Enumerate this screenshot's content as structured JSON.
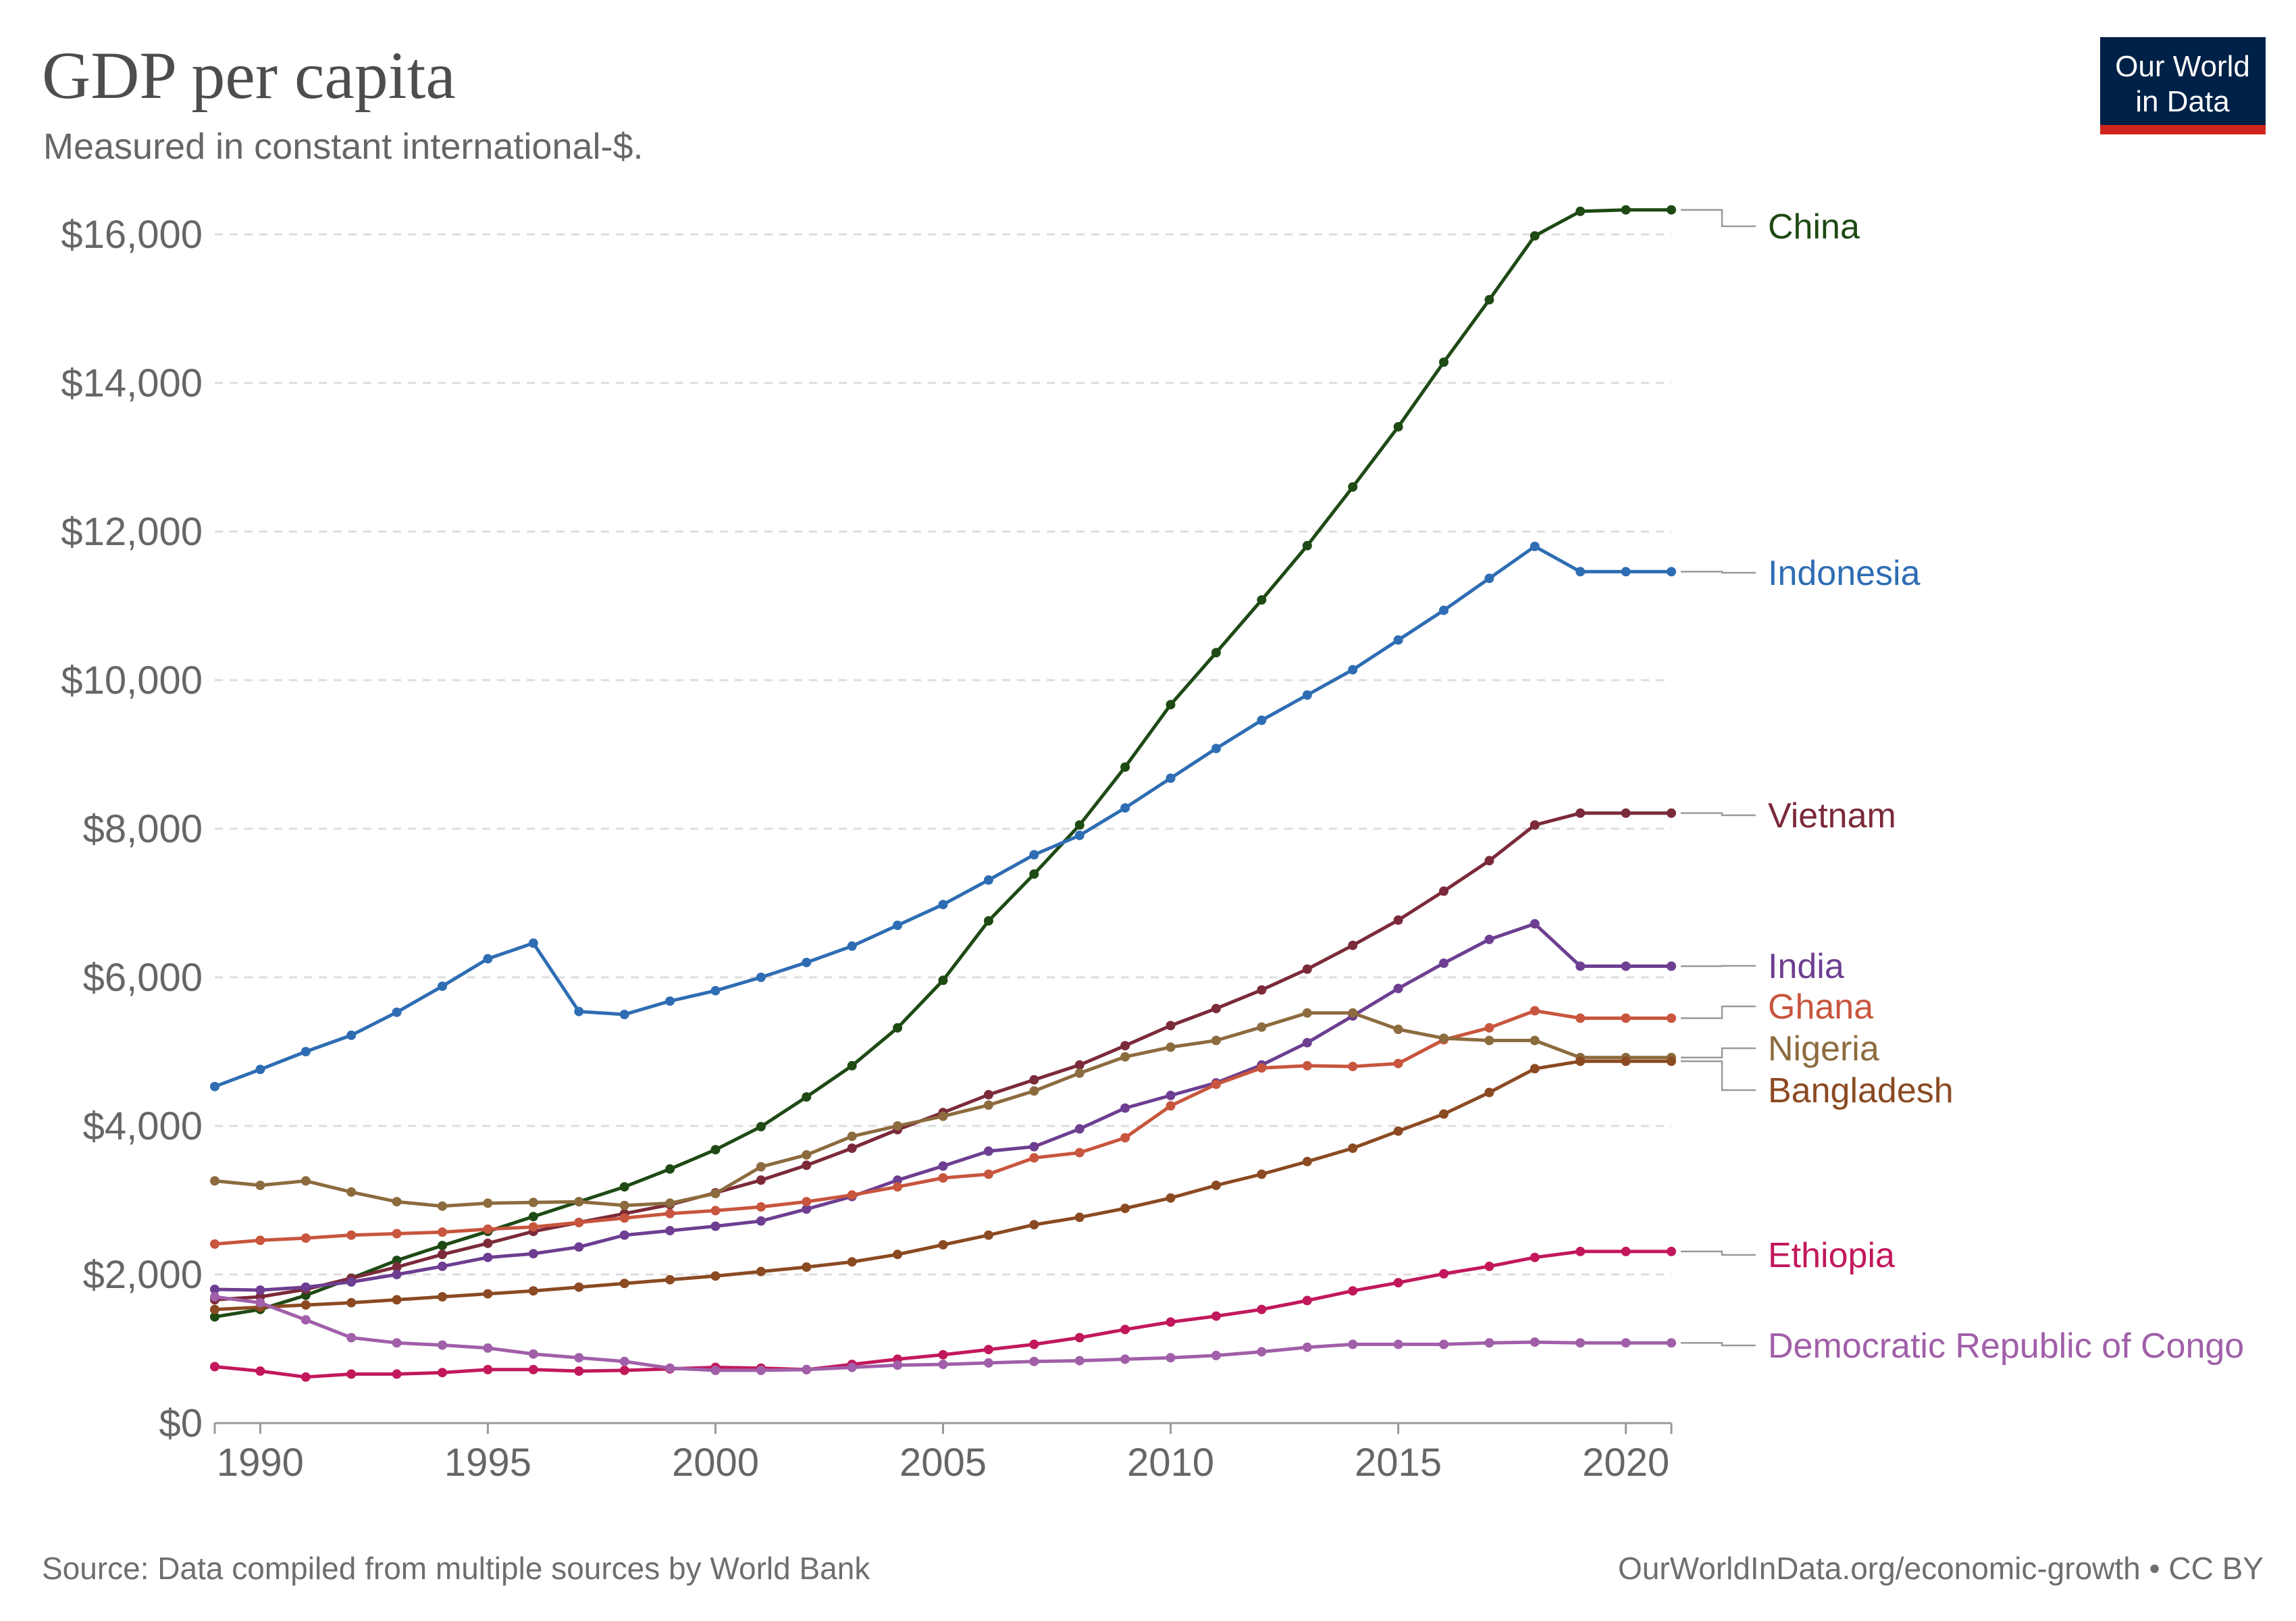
{
  "header": {
    "title": "GDP per capita",
    "subtitle": "Measured in constant international-$."
  },
  "logo": {
    "line1": "Our World",
    "line2": "in Data",
    "bg_color": "#002147",
    "accent_color": "#ce261e"
  },
  "footer": {
    "source": "Source: Data compiled from multiple sources by World Bank",
    "link": "OurWorldInData.org/economic-growth • CC BY"
  },
  "chart_data": {
    "type": "line",
    "title": "GDP per capita",
    "subtitle": "Measured in constant international-$.",
    "xlabel": "",
    "ylabel": "",
    "xlim": [
      1989,
      2021
    ],
    "ylim": [
      0,
      16000
    ],
    "x": [
      1989,
      1990,
      1991,
      1992,
      1993,
      1994,
      1995,
      1996,
      1997,
      1998,
      1999,
      2000,
      2001,
      2002,
      2003,
      2004,
      2005,
      2006,
      2007,
      2008,
      2009,
      2010,
      2011,
      2012,
      2013,
      2014,
      2015,
      2016,
      2017,
      2018,
      2019,
      2020,
      2021
    ],
    "xticks": [
      1990,
      1995,
      2000,
      2005,
      2010,
      2015,
      2020
    ],
    "xtick_labels": [
      "1990",
      "1995",
      "2000",
      "2005",
      "2010",
      "2015",
      "2020"
    ],
    "yticks": [
      0,
      2000,
      4000,
      6000,
      8000,
      10000,
      12000,
      14000,
      16000
    ],
    "ytick_labels": [
      "$0",
      "$2,000",
      "$4,000",
      "$6,000",
      "$8,000",
      "$10,000",
      "$12,000",
      "$14,000",
      "$16,000"
    ],
    "grid": true,
    "legend": "right-end labels",
    "series": [
      {
        "name": "China",
        "color": "#1e4a14",
        "values": [
          1430,
          1530,
          1720,
          1950,
          2190,
          2390,
          2580,
          2780,
          2980,
          3180,
          3420,
          3680,
          3990,
          4390,
          4810,
          5320,
          5960,
          6760,
          7390,
          8050,
          8830,
          9670,
          10370,
          11080,
          11810,
          12600,
          13410,
          14280,
          15120,
          15980,
          16310,
          16330,
          16330
        ]
      },
      {
        "name": "Indonesia",
        "color": "#2e6db3",
        "values": [
          4530,
          4760,
          5000,
          5220,
          5530,
          5880,
          6250,
          6460,
          5540,
          5500,
          5680,
          5820,
          6000,
          6200,
          6420,
          6700,
          6980,
          7310,
          7650,
          7910,
          8280,
          8680,
          9080,
          9460,
          9800,
          10140,
          10540,
          10940,
          11370,
          11800,
          11460,
          11460,
          11460
        ]
      },
      {
        "name": "Vietnam",
        "color": "#7b2a3a",
        "values": [
          1660,
          1700,
          1800,
          1950,
          2100,
          2270,
          2420,
          2580,
          2700,
          2820,
          2940,
          3100,
          3270,
          3470,
          3700,
          3950,
          4180,
          4420,
          4620,
          4820,
          5080,
          5350,
          5580,
          5830,
          6110,
          6430,
          6770,
          7160,
          7570,
          8050,
          8210,
          8210,
          8210
        ]
      },
      {
        "name": "India",
        "color": "#6d3e91",
        "values": [
          1800,
          1790,
          1830,
          1900,
          2000,
          2110,
          2230,
          2280,
          2370,
          2530,
          2590,
          2650,
          2720,
          2880,
          3050,
          3270,
          3460,
          3660,
          3720,
          3960,
          4240,
          4410,
          4580,
          4820,
          5120,
          5480,
          5850,
          6190,
          6510,
          6720,
          6150,
          6150,
          6150
        ]
      },
      {
        "name": "Ghana",
        "color": "#c8553d",
        "values": [
          2410,
          2460,
          2490,
          2530,
          2550,
          2570,
          2610,
          2640,
          2700,
          2760,
          2820,
          2860,
          2910,
          2980,
          3070,
          3180,
          3300,
          3350,
          3570,
          3640,
          3840,
          4270,
          4560,
          4780,
          4810,
          4800,
          4840,
          5160,
          5320,
          5550,
          5450,
          5450,
          5450
        ]
      },
      {
        "name": "Nigeria",
        "color": "#8c6b3e",
        "values": [
          3260,
          3200,
          3260,
          3110,
          2980,
          2920,
          2960,
          2970,
          2980,
          2930,
          2960,
          3090,
          3450,
          3610,
          3860,
          4000,
          4130,
          4280,
          4470,
          4710,
          4930,
          5060,
          5150,
          5330,
          5520,
          5520,
          5300,
          5180,
          5150,
          5150,
          4920,
          4920,
          4920
        ]
      },
      {
        "name": "Bangladesh",
        "color": "#8b4a22",
        "values": [
          1530,
          1560,
          1590,
          1620,
          1660,
          1700,
          1740,
          1780,
          1830,
          1880,
          1930,
          1980,
          2040,
          2100,
          2170,
          2270,
          2400,
          2530,
          2670,
          2770,
          2890,
          3030,
          3200,
          3350,
          3520,
          3700,
          3930,
          4160,
          4450,
          4770,
          4870,
          4870,
          4870
        ]
      },
      {
        "name": "Ethiopia",
        "color": "#c2185b",
        "values": [
          760,
          700,
          620,
          660,
          660,
          680,
          720,
          720,
          700,
          710,
          730,
          750,
          740,
          720,
          790,
          860,
          920,
          990,
          1060,
          1150,
          1260,
          1360,
          1440,
          1530,
          1650,
          1780,
          1890,
          2010,
          2110,
          2230,
          2310,
          2310,
          2310
        ]
      },
      {
        "name": "Democratic Republic of Congo",
        "color": "#a05fa8",
        "values": [
          1700,
          1620,
          1390,
          1150,
          1080,
          1050,
          1010,
          930,
          880,
          830,
          740,
          710,
          710,
          720,
          750,
          780,
          790,
          810,
          830,
          840,
          860,
          880,
          910,
          960,
          1020,
          1060,
          1060,
          1060,
          1080,
          1090,
          1080,
          1080,
          1080
        ]
      }
    ]
  }
}
